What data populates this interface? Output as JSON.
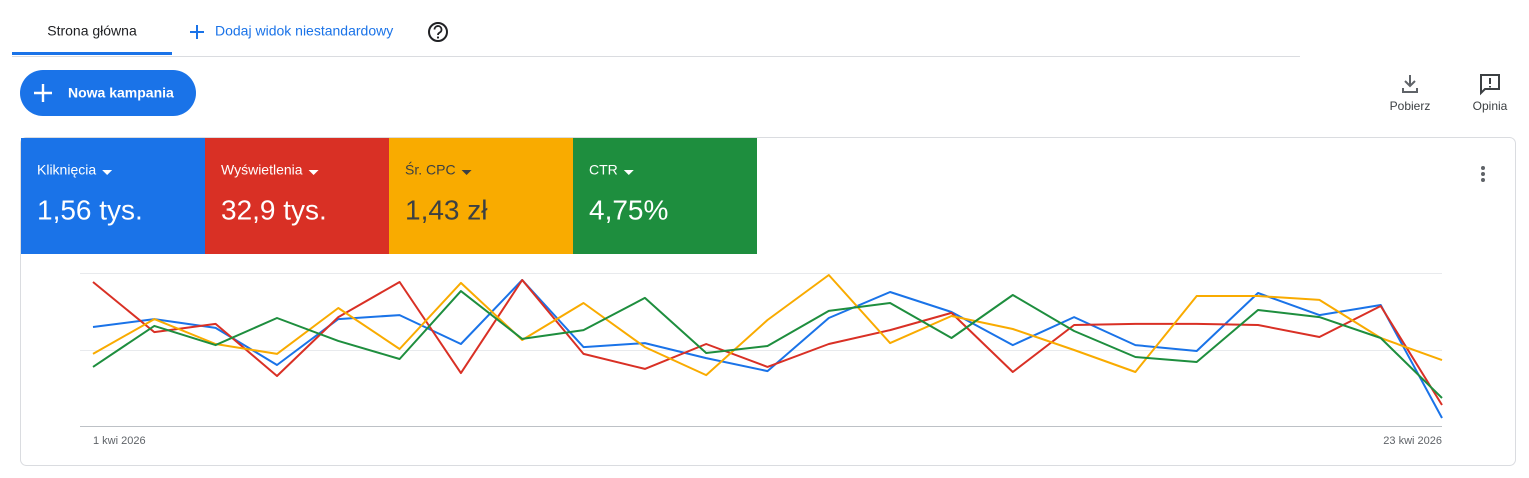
{
  "tabs": {
    "active": "Strona główna",
    "add": "Dodaj widok niestandardowy"
  },
  "toolbar": {
    "new_campaign": "Nowa kampania",
    "download": "Pobierz",
    "feedback": "Opinia"
  },
  "chart_data": {
    "type": "line",
    "categories": [
      "1 kwi 2026",
      null,
      null,
      null,
      null,
      null,
      null,
      null,
      null,
      null,
      null,
      null,
      null,
      null,
      null,
      null,
      null,
      null,
      null,
      null,
      null,
      null,
      "23 kwi 2026"
    ],
    "ylim": [
      0,
      100
    ],
    "series": [
      {
        "name": "Kliknięcia",
        "total": "1,56 tys.",
        "color": "#1a73e8",
        "values": [
          64.7,
          69.9,
          64.1,
          39.9,
          69.9,
          72.5,
          53.6,
          95.4,
          51.6,
          54.2,
          44.4,
          35.9,
          70.6,
          87.6,
          74.5,
          52.9,
          71.2,
          52.9,
          49.0,
          86.9,
          72.5,
          79.1,
          5.2
        ]
      },
      {
        "name": "Wyświetlenia",
        "total": "32,9 tys.",
        "color": "#d93025",
        "values": [
          94.1,
          61.4,
          66.7,
          32.7,
          71.2,
          94.1,
          34.6,
          95.4,
          47.1,
          37.3,
          53.6,
          38.6,
          53.6,
          62.7,
          73.9,
          35.3,
          66.0,
          66.7,
          66.7,
          66.0,
          58.2,
          78.4,
          13.7
        ]
      },
      {
        "name": "Śr. CPC",
        "total": "1,43 zł",
        "color": "#f9ab00",
        "values": [
          47.1,
          69.9,
          53.6,
          47.1,
          77.1,
          50.3,
          93.5,
          56.2,
          80.4,
          51.6,
          33.3,
          69.3,
          98.7,
          54.2,
          71.9,
          63.4,
          49.7,
          35.3,
          85.0,
          85.0,
          82.4,
          57.5,
          43.1
        ]
      },
      {
        "name": "CTR",
        "total": "4,75%",
        "color": "#1e8e3e",
        "values": [
          38.6,
          65.4,
          52.9,
          70.6,
          55.6,
          43.8,
          88.2,
          56.9,
          62.7,
          83.7,
          47.7,
          52.3,
          75.2,
          80.4,
          57.5,
          85.6,
          62.1,
          45.1,
          41.8,
          75.8,
          71.2,
          57.5,
          18.3
        ]
      }
    ]
  }
}
